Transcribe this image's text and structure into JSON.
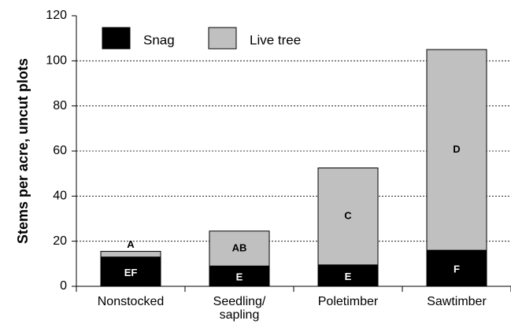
{
  "chart_data": {
    "type": "stacked-bar",
    "ylabel": "Stems per acre, uncut plots",
    "categories": [
      "Nonstocked",
      "Seedling/\nsapling",
      "Poletimber",
      "Sawtimber"
    ],
    "series": [
      {
        "name": "Snag",
        "color": "#000000",
        "label_color": "#ffffff",
        "values": [
          13,
          9,
          9.5,
          16
        ],
        "letters": [
          "EF",
          "E",
          "E",
          "F"
        ]
      },
      {
        "name": "Live tree",
        "color": "#c0c0c0",
        "label_color": "#000000",
        "values": [
          2.5,
          15.5,
          43,
          89
        ],
        "letters": [
          "A",
          "AB",
          "C",
          "D"
        ]
      }
    ],
    "ylim": [
      0,
      120
    ],
    "yticks": [
      0,
      20,
      40,
      60,
      80,
      100,
      120
    ],
    "grid": true
  }
}
